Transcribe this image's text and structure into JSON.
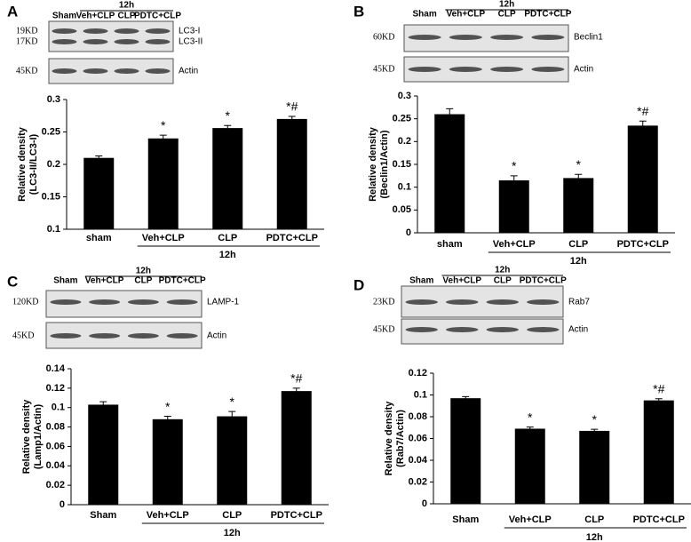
{
  "chart_data": [
    {
      "type": "bar",
      "panel": "A",
      "ylabel": [
        "Relative density",
        "(LC3-II/LC3-I)"
      ],
      "categories": [
        "sham",
        "Veh+CLP",
        "CLP",
        "PDTC+CLP"
      ],
      "group_label": "12h",
      "values": [
        0.21,
        0.24,
        0.256,
        0.27
      ],
      "errors": [
        0.003,
        0.005,
        0.004,
        0.004
      ],
      "annotations": [
        null,
        "*",
        "*",
        "*#"
      ],
      "color": "#000000",
      "ylim": [
        0.1,
        0.3
      ],
      "yticks": [
        0.1,
        0.15,
        0.2,
        0.25,
        0.3
      ],
      "blot": {
        "lanes": [
          "Sham",
          "Veh+CLP",
          "CLP",
          "PDTC+CLP"
        ],
        "group_label": "12h",
        "rows": [
          {
            "size": "19KD",
            "name": "LC3-I"
          },
          {
            "size": "17KD",
            "name": "LC3-II"
          },
          {
            "size": "45KD",
            "name": "Actin"
          }
        ]
      }
    },
    {
      "type": "bar",
      "panel": "B",
      "ylabel": [
        "Relative density",
        "(Beclin1/Actin)"
      ],
      "categories": [
        "sham",
        "Veh+CLP",
        "CLP",
        "PDTC+CLP"
      ],
      "group_label": "12h",
      "values": [
        0.26,
        0.115,
        0.12,
        0.235
      ],
      "errors": [
        0.012,
        0.01,
        0.008,
        0.01
      ],
      "annotations": [
        null,
        "*",
        "*",
        "*#"
      ],
      "color": "#000000",
      "ylim": [
        0,
        0.3
      ],
      "yticks": [
        0,
        0.05,
        0.1,
        0.15,
        0.2,
        0.25,
        0.3
      ],
      "blot": {
        "lanes": [
          "Sham",
          "Veh+CLP",
          "CLP",
          "PDTC+CLP"
        ],
        "group_label": "12h",
        "rows": [
          {
            "size": "60KD",
            "name": "Beclin1"
          },
          {
            "size": "45KD",
            "name": "Actin"
          }
        ]
      }
    },
    {
      "type": "bar",
      "panel": "C",
      "ylabel": [
        "Relative density",
        "(Lamp1/Actin)"
      ],
      "categories": [
        "Sham",
        "Veh+CLP",
        "CLP",
        "PDTC+CLP"
      ],
      "group_label": "12h",
      "values": [
        0.103,
        0.088,
        0.091,
        0.117
      ],
      "errors": [
        0.003,
        0.003,
        0.005,
        0.003
      ],
      "annotations": [
        null,
        "*",
        "*",
        "*#"
      ],
      "color": "#000000",
      "ylim": [
        0,
        0.14
      ],
      "yticks": [
        0,
        0.02,
        0.04,
        0.06,
        0.08,
        0.1,
        0.12,
        0.14
      ],
      "blot": {
        "lanes": [
          "Sham",
          "Veh+CLP",
          "CLP",
          "PDTC+CLP"
        ],
        "group_label": "12h",
        "rows": [
          {
            "size": "120KD",
            "name": "LAMP-1"
          },
          {
            "size": "45KD",
            "name": "Actin"
          }
        ]
      }
    },
    {
      "type": "bar",
      "panel": "D",
      "ylabel": [
        "Relative density",
        "(Rab7/Actin)"
      ],
      "categories": [
        "Sham",
        "Veh+CLP",
        "CLP",
        "PDTC+CLP"
      ],
      "group_label": "12h",
      "values": [
        0.097,
        0.069,
        0.067,
        0.095
      ],
      "errors": [
        0.0015,
        0.0015,
        0.0015,
        0.0015
      ],
      "annotations": [
        null,
        "*",
        "*",
        "*#"
      ],
      "color": "#000000",
      "ylim": [
        0,
        0.12
      ],
      "yticks": [
        0,
        0.02,
        0.04,
        0.06,
        0.08,
        0.1,
        0.12
      ],
      "blot": {
        "lanes": [
          "Sham",
          "Veh+CLP",
          "CLP",
          "PDTC+CLP"
        ],
        "group_label": "12h",
        "rows": [
          {
            "size": "23KD",
            "name": "Rab7"
          },
          {
            "size": "45KD",
            "name": "Actin"
          }
        ]
      }
    }
  ]
}
